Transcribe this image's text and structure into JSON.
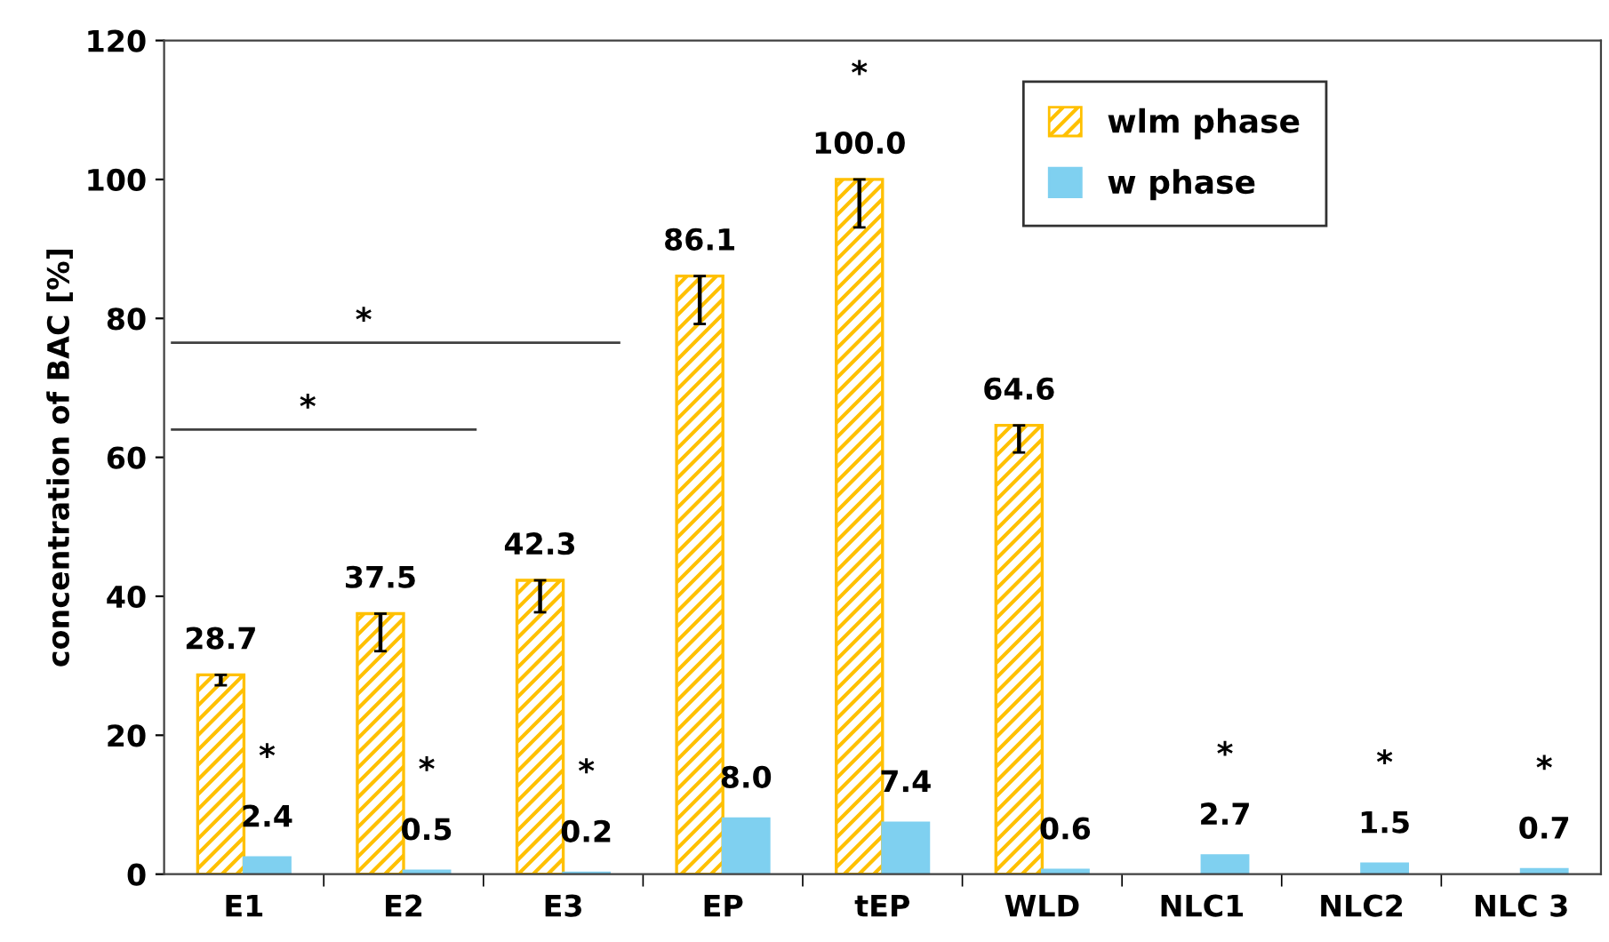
{
  "chart_data": {
    "type": "bar",
    "ylabel": "concentration of BAC [%]",
    "categories": [
      "E1",
      "E2",
      "E3",
      "EP",
      "tEP",
      "WLD",
      "NLC1",
      "NLC2",
      "NLC 3"
    ],
    "series": [
      {
        "name": "wlm phase",
        "color": "#ffc000",
        "values": [
          28.7,
          37.5,
          42.3,
          86.1,
          100.0,
          64.6,
          null,
          null,
          null
        ],
        "value_labels": [
          "28.7",
          "37.5",
          "42.3",
          "86.1",
          "100.0",
          "64.6",
          null,
          null,
          null
        ],
        "errors": [
          [
            27.2,
            28.7
          ],
          [
            32.1,
            37.5
          ],
          [
            37.7,
            42.3
          ],
          [
            79.2,
            86.1
          ],
          [
            93.1,
            100.0
          ],
          [
            60.7,
            64.6
          ],
          null,
          null,
          null
        ]
      },
      {
        "name": "w phase",
        "color": "#7fd0f0",
        "values": [
          2.4,
          0.5,
          0.2,
          8.0,
          7.4,
          0.6,
          2.7,
          1.5,
          0.7
        ],
        "value_labels": [
          "2.4",
          "0.5",
          "0.2",
          "8.0",
          "7.4",
          "0.6",
          "2.7",
          "1.5",
          "0.7"
        ]
      }
    ],
    "ylim": [
      0,
      120
    ],
    "yticks": [
      0,
      20,
      40,
      60,
      80,
      100,
      120
    ],
    "grid": false,
    "legend": "top right",
    "annotations": [
      "*",
      "*",
      "*",
      "*",
      "*",
      "*",
      "*",
      "*",
      "*"
    ]
  }
}
